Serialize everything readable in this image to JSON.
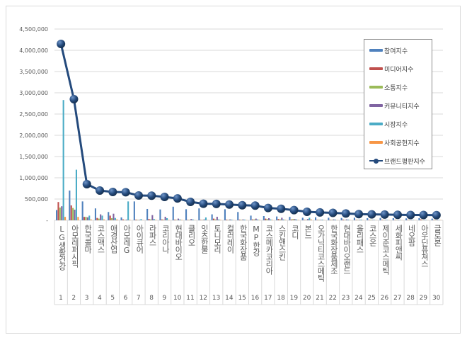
{
  "chart_data": {
    "type": "bar",
    "title": "",
    "xlabel": "",
    "ylabel": "",
    "ylim": [
      0,
      4500000
    ],
    "ytick_step": 500000,
    "ytick_labels": [
      "-",
      "500,000",
      "1,000,000",
      "1,500,000",
      "2,000,000",
      "2,500,000",
      "3,000,000",
      "3,500,000",
      "4,000,000",
      "4,500,000"
    ],
    "grid": true,
    "legend_position": "right",
    "categories": [
      "LG생활건강",
      "아모레퍼시픽",
      "한국콜마",
      "코스맥스",
      "애경산업",
      "아모레G",
      "아이큐어",
      "라파스",
      "코리아나",
      "현대바이오",
      "클리오",
      "잇츠한불",
      "토니모리",
      "컬러레이",
      "한국화장품",
      "MP한강",
      "코스메카코리아",
      "스킨앤스킨",
      "코디",
      "본느",
      "오가닉티코스메틱",
      "한국화장품제조",
      "현대바이오랜드",
      "올리패스",
      "코스온",
      "제이준코스메틱",
      "세화피앤씨",
      "네오팜",
      "아우딘퓨쳐스",
      "글로본"
    ],
    "rank_numbers": [
      "1",
      "2",
      "3",
      "4",
      "5",
      "6",
      "7",
      "8",
      "9",
      "10",
      "11",
      "12",
      "13",
      "14",
      "15",
      "16",
      "17",
      "18",
      "19",
      "20",
      "21",
      "22",
      "23",
      "24",
      "25",
      "26",
      "27",
      "28",
      "29",
      "30"
    ],
    "series": [
      {
        "name": "참여지수",
        "type": "bar",
        "color": "#4f81bd",
        "values": [
          240000,
          700000,
          444000,
          280000,
          195000,
          67000,
          444000,
          267000,
          255000,
          320000,
          260000,
          280000,
          140000,
          260000,
          195000,
          110000,
          100000,
          90000,
          80000,
          60000,
          70000,
          60000,
          55000,
          60000,
          50000,
          55000,
          50000,
          45000,
          50000,
          40000
        ]
      },
      {
        "name": "미디어지수",
        "type": "bar",
        "color": "#c0504d",
        "values": [
          430000,
          350000,
          80000,
          55000,
          110000,
          20000,
          15000,
          30000,
          20000,
          15000,
          10000,
          10000,
          40000,
          15000,
          15000,
          20000,
          40000,
          30000,
          20000,
          10000,
          10000,
          10000,
          15000,
          10000,
          10000,
          10000,
          10000,
          10000,
          20000,
          10000
        ]
      },
      {
        "name": "소통지수",
        "type": "bar",
        "color": "#9bbb59",
        "values": [
          300000,
          290000,
          80000,
          40000,
          50000,
          10000,
          10000,
          20000,
          15000,
          10000,
          10000,
          10000,
          20000,
          10000,
          10000,
          20000,
          30000,
          20000,
          30000,
          10000,
          10000,
          10000,
          10000,
          10000,
          10000,
          10000,
          10000,
          10000,
          10000,
          10000
        ]
      },
      {
        "name": "커뮤니티지수",
        "type": "bar",
        "color": "#8064a2",
        "values": [
          330000,
          250000,
          70000,
          140000,
          155000,
          15000,
          10000,
          122000,
          83000,
          40000,
          30000,
          20000,
          83000,
          20000,
          20000,
          40000,
          50000,
          60000,
          30000,
          30000,
          10000,
          20000,
          20000,
          10000,
          10000,
          10000,
          10000,
          10000,
          10000,
          10000
        ]
      },
      {
        "name": "시장지수",
        "type": "bar",
        "color": "#4bacc6",
        "values": [
          2830000,
          1190000,
          110000,
          110000,
          55000,
          444000,
          28000,
          30000,
          50000,
          20000,
          20000,
          67000,
          20000,
          15000,
          15000,
          20000,
          20000,
          20000,
          20000,
          60000,
          15000,
          15000,
          15000,
          15000,
          10000,
          10000,
          10000,
          10000,
          10000,
          10000
        ]
      },
      {
        "name": "사회공헌지수",
        "type": "bar",
        "color": "#f79646",
        "values": [
          80000,
          80000,
          20000,
          20000,
          20000,
          10000,
          5000,
          10000,
          10000,
          10000,
          5000,
          5000,
          10000,
          5000,
          5000,
          10000,
          10000,
          10000,
          10000,
          20000,
          5000,
          5000,
          5000,
          5000,
          5000,
          5000,
          5000,
          5000,
          5000,
          5000
        ]
      },
      {
        "name": "브랜드평판지수",
        "type": "line",
        "color": "#244a7c",
        "values": [
          4150000,
          2850000,
          850000,
          700000,
          667000,
          660000,
          583000,
          580000,
          550000,
          515000,
          433000,
          390000,
          385000,
          370000,
          355000,
          345000,
          290000,
          270000,
          240000,
          200000,
          185000,
          175000,
          160000,
          145000,
          140000,
          135000,
          130000,
          125000,
          125000,
          120000
        ]
      }
    ]
  }
}
